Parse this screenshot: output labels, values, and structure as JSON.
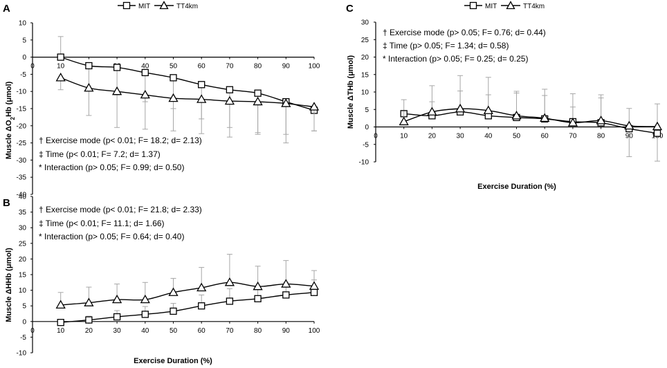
{
  "legend_labels": [
    "MIT",
    "TT4km"
  ],
  "chart_data": [
    {
      "id": "A",
      "type": "line",
      "panel_label": "A",
      "ylabel_parts": [
        "Muscle ΔO",
        "2",
        "Hb (μmol)"
      ],
      "xlabel": "",
      "ylim": [
        -40,
        10
      ],
      "ytick_step": 5,
      "x": [
        10,
        20,
        30,
        40,
        50,
        60,
        70,
        80,
        90,
        100
      ],
      "x_ticks": [
        0,
        10,
        20,
        30,
        40,
        50,
        60,
        70,
        80,
        90,
        100
      ],
      "series": [
        {
          "name": "MIT",
          "marker": "square",
          "values": [
            0,
            -2.5,
            -3,
            -4.5,
            -6,
            -8,
            -9.5,
            -10.5,
            -13,
            -15.5
          ],
          "err": [
            6,
            7,
            8,
            8.5,
            9,
            10,
            11,
            11.5,
            12,
            6
          ]
        },
        {
          "name": "TT4km",
          "marker": "triangle",
          "values": [
            -6,
            -9,
            -10,
            -11,
            -12,
            -12.3,
            -12.8,
            -13,
            -13.5,
            -14.5
          ],
          "err": [
            3.5,
            8,
            10.5,
            10,
            9.5,
            10,
            10.5,
            9.5,
            9,
            7
          ]
        }
      ],
      "annotations": [
        "† Exercise mode (p< 0.01; F= 18.2; d= 2.13)",
        "‡ Time (p< 0.01; F= 7.2; d= 1.37)",
        "* Interaction (p> 0.05; F= 0.99; d= 0.50)"
      ]
    },
    {
      "id": "B",
      "type": "line",
      "panel_label": "B",
      "ylabel_parts": [
        "Muscle ΔHHb (μmol)"
      ],
      "xlabel": "Exercise Duration (%)",
      "ylim": [
        -10,
        40
      ],
      "ytick_step": 5,
      "x": [
        10,
        20,
        30,
        40,
        50,
        60,
        70,
        80,
        90,
        100
      ],
      "x_ticks": [
        0,
        10,
        20,
        30,
        40,
        50,
        60,
        70,
        80,
        90,
        100
      ],
      "series": [
        {
          "name": "MIT",
          "marker": "square",
          "values": [
            -0.3,
            0.5,
            1.5,
            2.3,
            3.3,
            5,
            6.5,
            7.3,
            8.5,
            9.3
          ],
          "err": [
            0.5,
            1.2,
            2,
            2.5,
            2.5,
            3.5,
            4,
            4,
            4,
            4
          ]
        },
        {
          "name": "TT4km",
          "marker": "triangle",
          "values": [
            5.3,
            6,
            7,
            7,
            9.3,
            10.8,
            12.5,
            11.2,
            12,
            11.3
          ],
          "err": [
            4,
            5,
            5,
            5.5,
            4.5,
            6.5,
            9,
            6.5,
            7.5,
            5
          ]
        }
      ],
      "annotations": [
        "† Exercise mode (p< 0.01; F= 21.8; d= 2.33)",
        "‡ Time (p< 0.01; F= 11.1; d= 1.66)",
        "* Interaction (p> 0.05; F= 0.64; d= 0.40)"
      ]
    },
    {
      "id": "C",
      "type": "line",
      "panel_label": "C",
      "ylabel_parts": [
        "Muscle ΔTHb (μmol)"
      ],
      "xlabel": "Exercise Duration (%)",
      "ylim": [
        -10,
        30
      ],
      "ytick_step": 5,
      "x": [
        10,
        20,
        30,
        40,
        50,
        60,
        70,
        80,
        90,
        100
      ],
      "x_ticks": [
        0,
        10,
        20,
        30,
        40,
        50,
        60,
        70,
        80,
        90,
        100
      ],
      "series": [
        {
          "name": "MIT",
          "marker": "square",
          "values": [
            3.8,
            3.2,
            4.3,
            3.2,
            2.7,
            2.3,
            1.5,
            1.2,
            -0.5,
            -1.8
          ],
          "err": [
            4,
            4,
            6,
            6,
            7.5,
            8.5,
            8,
            8,
            8,
            8
          ]
        },
        {
          "name": "TT4km",
          "marker": "triangle",
          "values": [
            1.5,
            4.3,
            5.2,
            4.7,
            3.2,
            2.5,
            1.2,
            1.8,
            0.3,
            0.1
          ],
          "err": [
            3,
            7.5,
            9.5,
            9.5,
            6.5,
            6.5,
            4.5,
            6.5,
            5,
            6.5
          ]
        }
      ],
      "annotations": [
        "† Exercise mode (p> 0.05; F= 0.76; d= 0.44)",
        "‡ Time (p> 0.05; F= 1.34; d= 0.58)",
        "* Interaction (p> 0.05; F= 0.25; d= 0.25)"
      ]
    }
  ]
}
